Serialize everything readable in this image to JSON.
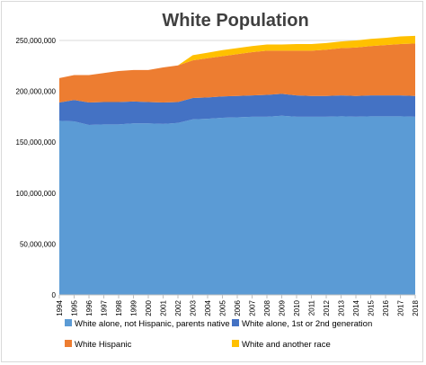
{
  "chart_data": {
    "type": "area",
    "stacked": true,
    "title": "White Population",
    "xlabel": "",
    "ylabel": "",
    "x": [
      "1994",
      "1995",
      "1996",
      "1997",
      "1998",
      "1999",
      "2000",
      "2001",
      "2002",
      "2003",
      "2004",
      "2005",
      "2006",
      "2007",
      "2008",
      "2009",
      "2010",
      "2011",
      "2012",
      "2013",
      "2014",
      "2015",
      "2016",
      "2017",
      "2018"
    ],
    "ylim": [
      0,
      250000000
    ],
    "yticks": [
      "0",
      "50,000,000",
      "100,000,000",
      "150,000,000",
      "200,000,000",
      "250,000,000"
    ],
    "grid": true,
    "legend_position": "bottom",
    "series": [
      {
        "name": "White alone, not Hispanic, parents native",
        "color": "#5b9bd5",
        "values": [
          171000000,
          170500000,
          167000000,
          167500000,
          167500000,
          168500000,
          168500000,
          168000000,
          169000000,
          172500000,
          173000000,
          174000000,
          174500000,
          175000000,
          175000000,
          176000000,
          175000000,
          175000000,
          175000000,
          175500000,
          175000000,
          175500000,
          175500000,
          175500000,
          175000000
        ]
      },
      {
        "name": "White alone, 1st or 2nd generation",
        "color": "#4472c4",
        "values": [
          18000000,
          21000000,
          22000000,
          22000000,
          22000000,
          21500000,
          21000000,
          21000000,
          20500000,
          21000000,
          21000000,
          21000000,
          21000000,
          21000000,
          21500000,
          21500000,
          21000000,
          20500000,
          20500000,
          20500000,
          20500000,
          20500000,
          20500000,
          20500000,
          20500000
        ]
      },
      {
        "name": "White Hispanic",
        "color": "#ed7d31",
        "values": [
          24000000,
          24500000,
          27000000,
          28500000,
          30500000,
          31000000,
          31500000,
          34500000,
          36000000,
          37000000,
          38500000,
          39500000,
          41000000,
          42500000,
          43500000,
          42500000,
          44000000,
          44500000,
          45500000,
          46500000,
          47500000,
          48500000,
          49500000,
          50500000,
          51500000
        ]
      },
      {
        "name": "White and another race",
        "color": "#ffc000",
        "values": [
          0,
          0,
          0,
          0,
          0,
          0,
          0,
          0,
          0,
          5000000,
          5500000,
          6000000,
          6000000,
          6000000,
          6000000,
          6000000,
          6500000,
          6500000,
          6500000,
          6500000,
          7000000,
          7000000,
          7000000,
          7500000,
          7500000
        ]
      }
    ]
  }
}
